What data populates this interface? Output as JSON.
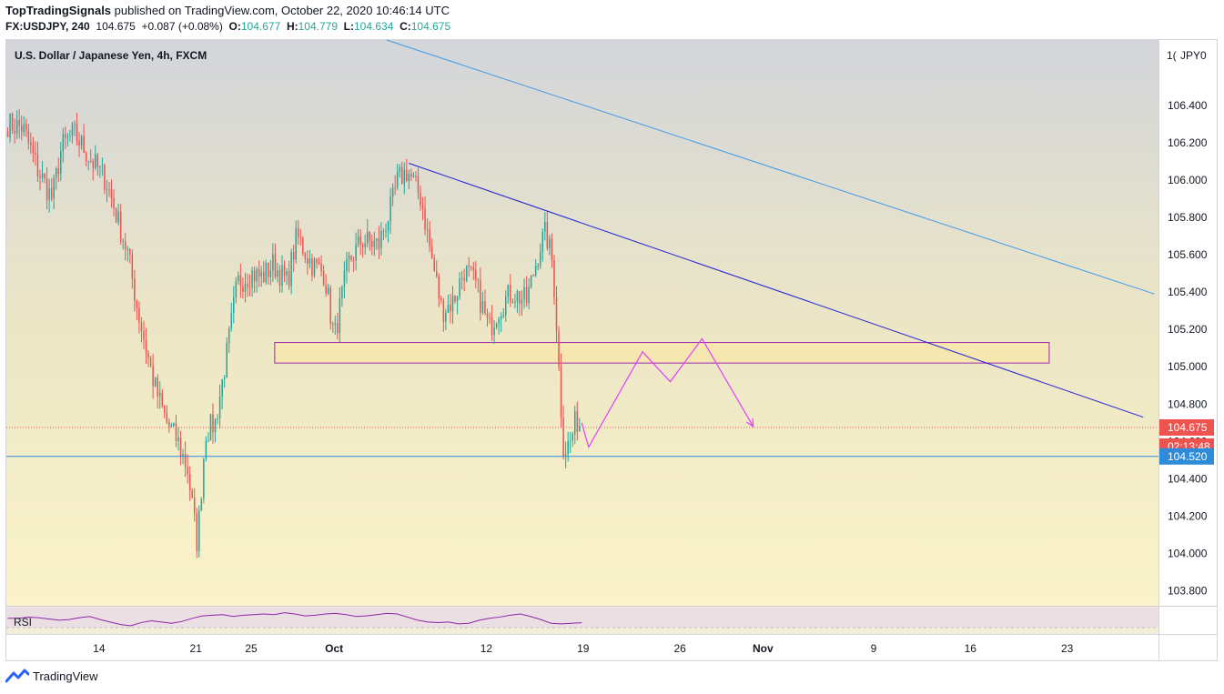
{
  "header": {
    "publisher": "TopTradingSignals",
    "published_text": "published on TradingView.com, October 22, 2020 10:46:14 UTC",
    "symbol": "FX:USDJPY, 240",
    "last": "104.675",
    "change": "+0.087 (+0.08%)",
    "o_label": "O:",
    "o_value": "104.677",
    "h_label": "H:",
    "h_value": "104.779",
    "l_label": "L:",
    "l_value": "104.634",
    "c_label": "C:",
    "c_value": "104.675"
  },
  "pane": {
    "title": "U.S. Dollar / Japanese Yen, 4h, FXCM",
    "currency": "JPY",
    "scale_prefix": "1(",
    "scale_suffix": "0"
  },
  "indicator": {
    "name": "RSI"
  },
  "footer": {
    "brand": "TradingView"
  },
  "colors": {
    "up": "#26a69a",
    "down": "#ef5350",
    "bg_top": "#d1d4dc",
    "bg_bottom": "#faf3cc",
    "trend_main": "#1f1fd8",
    "trend_upper": "#3d9be9",
    "zone_fill": "#f7e6ad",
    "zone_border": "#9c27b0",
    "projection": "#e040fb",
    "support": "#2e8bd8",
    "rsi": "#8e24aa"
  },
  "chart_data": {
    "type": "candlestick",
    "title": "U.S. Dollar / Japanese Yen, 4h, FXCM",
    "y_axis": {
      "ticks": [
        103.8,
        104.0,
        104.2,
        104.4,
        104.6,
        104.8,
        105.0,
        105.2,
        105.4,
        105.6,
        105.8,
        106.0,
        106.2,
        106.4
      ],
      "tick_labels": [
        "103.800",
        "104.000",
        "104.200",
        "104.400",
        "104.600",
        "104.800",
        "105.000",
        "105.200",
        "105.400",
        "105.600",
        "105.800",
        "106.000",
        "106.200",
        "106.400"
      ],
      "range": [
        103.72,
        106.75
      ]
    },
    "x_axis": {
      "ticks": [
        {
          "label": "14",
          "day": 14
        },
        {
          "label": "21",
          "day": 21
        },
        {
          "label": "25",
          "day": 25
        },
        {
          "label": "Oct",
          "day": 31
        },
        {
          "label": "12",
          "day": 42
        },
        {
          "label": "19",
          "day": 49
        },
        {
          "label": "26",
          "day": 56
        },
        {
          "label": "Nov",
          "day": 62
        },
        {
          "label": "9",
          "day": 70
        },
        {
          "label": "16",
          "day": 77
        },
        {
          "label": "23",
          "day": 84
        }
      ],
      "range_days": [
        7.3,
        90.6
      ]
    },
    "anchors": [
      [
        7.4,
        106.3
      ],
      [
        8.5,
        106.28
      ],
      [
        9.6,
        106.05
      ],
      [
        10.6,
        105.9
      ],
      [
        11.3,
        106.18
      ],
      [
        12.2,
        106.25
      ],
      [
        13.5,
        106.1
      ],
      [
        14.5,
        106.0
      ],
      [
        15.3,
        105.8
      ],
      [
        16.1,
        105.6
      ],
      [
        16.8,
        105.3
      ],
      [
        17.4,
        105.1
      ],
      [
        18.0,
        104.9
      ],
      [
        18.9,
        104.7
      ],
      [
        19.7,
        104.6
      ],
      [
        20.4,
        104.45
      ],
      [
        21.1,
        104.05
      ],
      [
        21.7,
        104.65
      ],
      [
        22.4,
        104.7
      ],
      [
        23.2,
        105.05
      ],
      [
        24.0,
        105.45
      ],
      [
        25.0,
        105.5
      ],
      [
        25.8,
        105.48
      ],
      [
        26.6,
        105.55
      ],
      [
        27.6,
        105.45
      ],
      [
        28.3,
        105.7
      ],
      [
        29.4,
        105.55
      ],
      [
        30.3,
        105.5
      ],
      [
        31.0,
        105.15
      ],
      [
        32.0,
        105.55
      ],
      [
        33.0,
        105.68
      ],
      [
        34.2,
        105.65
      ],
      [
        35.1,
        105.85
      ],
      [
        35.6,
        106.0
      ],
      [
        36.3,
        106.05
      ],
      [
        37.3,
        105.9
      ],
      [
        38.0,
        105.6
      ],
      [
        38.8,
        105.3
      ],
      [
        39.6,
        105.35
      ],
      [
        40.4,
        105.52
      ],
      [
        41.2,
        105.45
      ],
      [
        42.2,
        105.2
      ],
      [
        42.8,
        105.3
      ],
      [
        43.8,
        105.4
      ],
      [
        44.9,
        105.35
      ],
      [
        45.9,
        105.65
      ],
      [
        46.3,
        105.72
      ],
      [
        46.8,
        105.55
      ],
      [
        47.1,
        105.2
      ],
      [
        47.3,
        104.9
      ],
      [
        47.6,
        104.55
      ],
      [
        48.1,
        104.6
      ],
      [
        48.5,
        104.72
      ],
      [
        48.9,
        104.68
      ]
    ],
    "candle_spacing_days": 0.1667,
    "last_price": 104.675,
    "last_price_label": "104.675",
    "countdown_label": "02:13:48",
    "support_level": 104.52,
    "support_label": "104.520",
    "resistance_zone": {
      "from": 105.02,
      "to": 105.13,
      "start_day": 26.7,
      "end_day": 82.7
    },
    "trendlines": [
      {
        "name": "main-downtrend",
        "points": [
          [
            36.4,
            106.09
          ],
          [
            89.5,
            104.73
          ]
        ]
      },
      {
        "name": "upper-downtrend",
        "points": [
          [
            34.8,
            106.75
          ],
          [
            90.3,
            105.39
          ]
        ]
      }
    ],
    "projection_path": [
      [
        48.9,
        104.7
      ],
      [
        49.4,
        104.57
      ],
      [
        53.3,
        105.08
      ],
      [
        55.3,
        104.92
      ],
      [
        57.6,
        105.15
      ],
      [
        61.3,
        104.68
      ]
    ],
    "rsi": [
      30,
      30,
      32,
      31,
      29,
      27,
      28,
      31,
      33,
      28,
      24,
      20,
      18,
      23,
      26,
      24,
      22,
      25,
      30,
      34,
      35,
      36,
      33,
      35,
      36,
      37,
      36,
      39,
      37,
      34,
      35,
      37,
      38,
      36,
      33,
      34,
      36,
      38,
      37,
      32,
      27,
      24,
      23,
      24,
      21,
      22,
      27,
      30,
      32,
      35,
      37,
      33,
      28,
      22,
      21,
      22,
      23
    ]
  }
}
